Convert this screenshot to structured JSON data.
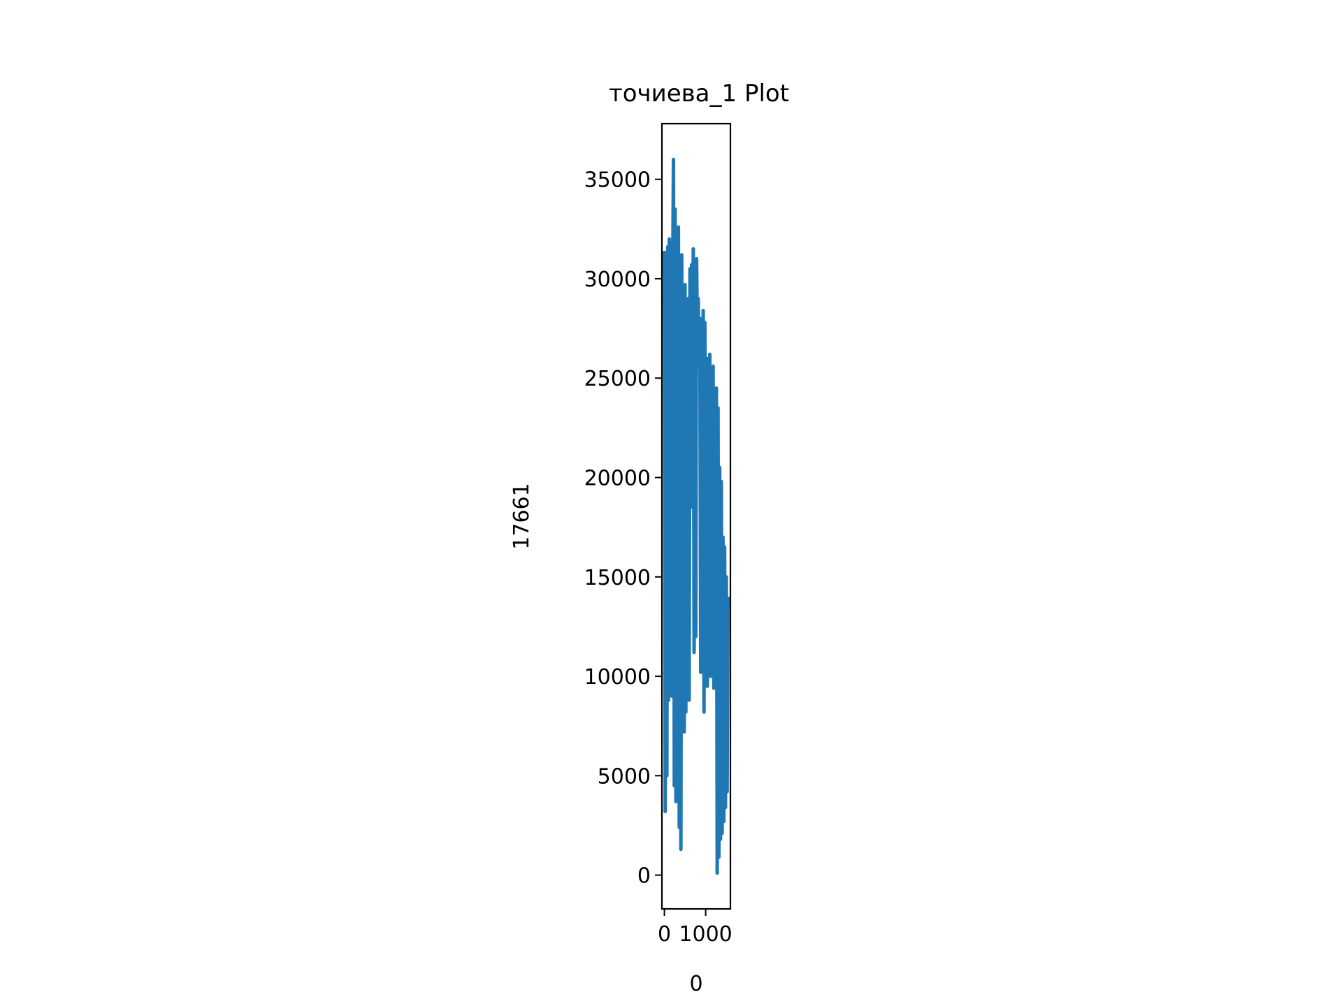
{
  "chart_data": {
    "type": "line",
    "title": "точиева_1 Plot",
    "xlabel": "0",
    "ylabel": "17661",
    "xlim": [
      -60,
      1600
    ],
    "ylim": [
      -1700,
      37800
    ],
    "xticks": [
      {
        "value": 0,
        "label": "0"
      },
      {
        "value": 1000,
        "label": "1000"
      }
    ],
    "yticks": [
      {
        "value": 0,
        "label": "0"
      },
      {
        "value": 5000,
        "label": "5000"
      },
      {
        "value": 10000,
        "label": "10000"
      },
      {
        "value": 15000,
        "label": "15000"
      },
      {
        "value": 20000,
        "label": "20000"
      },
      {
        "value": 25000,
        "label": "25000"
      },
      {
        "value": 30000,
        "label": "30000"
      },
      {
        "value": 35000,
        "label": "35000"
      }
    ],
    "grid": false,
    "legend": "none",
    "series": [
      {
        "color": "#1f77b4",
        "x": [
          0,
          20,
          40,
          60,
          80,
          100,
          120,
          140,
          160,
          180,
          200,
          220,
          240,
          260,
          280,
          300,
          320,
          340,
          360,
          380,
          400,
          420,
          440,
          460,
          480,
          500,
          520,
          540,
          560,
          580,
          600,
          620,
          640,
          660,
          680,
          700,
          720,
          740,
          760,
          780,
          800,
          820,
          840,
          860,
          880,
          900,
          920,
          940,
          960,
          980,
          1000,
          1020,
          1040,
          1060,
          1080,
          1100,
          1120,
          1140,
          1160,
          1180,
          1200,
          1220,
          1240,
          1260,
          1280,
          1300,
          1320,
          1340,
          1360,
          1380,
          1400,
          1420,
          1440,
          1460,
          1480,
          1500,
          1520,
          1540
        ],
        "y": [
          31400,
          3200,
          30500,
          5000,
          31600,
          8800,
          32000,
          10000,
          29000,
          9000,
          30000,
          36000,
          4500,
          33500,
          3700,
          31000,
          12000,
          32600,
          2400,
          29900,
          1300,
          31200,
          10500,
          28500,
          7200,
          29700,
          8200,
          28000,
          9000,
          29000,
          8800,
          30500,
          18500,
          30700,
          19000,
          31500,
          11200,
          30000,
          12000,
          31000,
          27000,
          29000,
          25500,
          28000,
          10200,
          27500,
          22000,
          28400,
          8200,
          27800,
          21000,
          26000,
          9500,
          25800,
          20000,
          26200,
          10000,
          25500,
          18000,
          25600,
          9400,
          24000,
          17000,
          24500,
          100,
          23500,
          900,
          20500,
          1800,
          19800,
          2100,
          17000,
          2700,
          16500,
          3400,
          15000,
          4200,
          14000
        ]
      }
    ]
  }
}
